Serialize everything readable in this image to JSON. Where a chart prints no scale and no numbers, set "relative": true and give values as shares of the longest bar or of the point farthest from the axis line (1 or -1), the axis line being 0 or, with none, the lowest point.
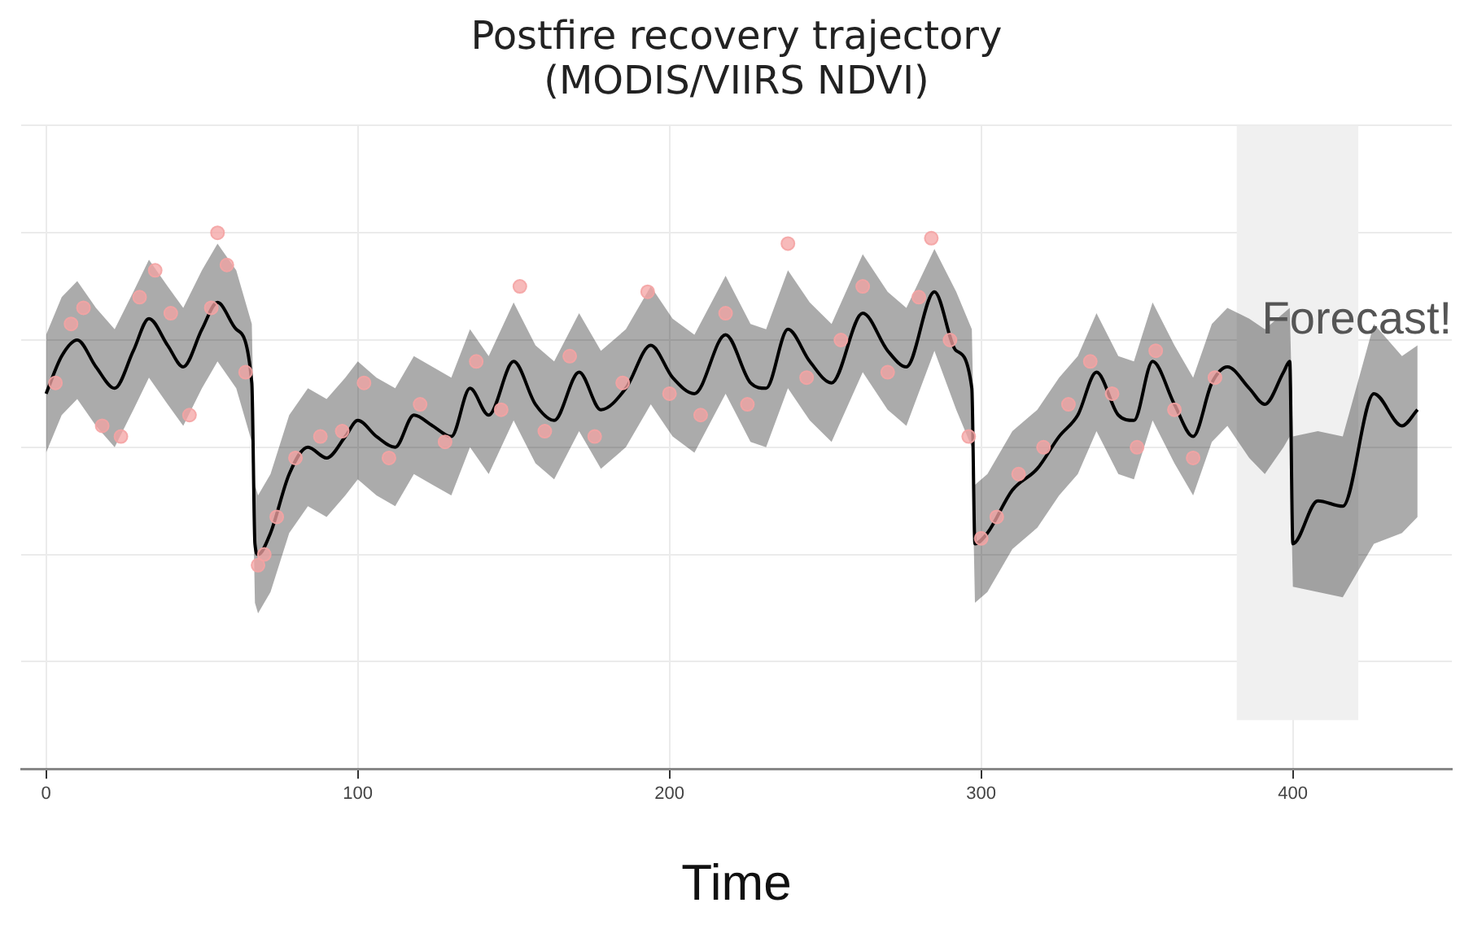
{
  "chart_data": {
    "type": "line",
    "title": "Postfire recovery trajectory\n(MODIS/VIIRS NDVI)",
    "xlabel": "Time",
    "relative": true,
    "grid": true,
    "legend": false,
    "xlim": [
      -8,
      451
    ],
    "xticks": [
      0,
      100,
      200,
      300,
      400
    ],
    "bands": [
      {
        "axis": "x",
        "from": 382,
        "to": 421,
        "color": "#f0f0f0"
      }
    ],
    "annotations": [
      "Forecast!"
    ],
    "series": [
      {
        "type": "line",
        "color": "#000000",
        "marker": "none",
        "line_style": "solid",
        "x": [
          0,
          5,
          10,
          16,
          22,
          28,
          33,
          39,
          44,
          50,
          55,
          61,
          66,
          67,
          68,
          72,
          78,
          84,
          90,
          96,
          100,
          106,
          112,
          118,
          124,
          130,
          136,
          142,
          150,
          157,
          163,
          171,
          178,
          186,
          194,
          201,
          208,
          218,
          226,
          231,
          238,
          245,
          252,
          262,
          270,
          276,
          285,
          292,
          297,
          298,
          302,
          310,
          318,
          325,
          331,
          337,
          344,
          349,
          355,
          362,
          368,
          374,
          379,
          386,
          391,
          397,
          399,
          400,
          408,
          416,
          426,
          435,
          440
        ],
        "values": [
          0.7,
          0.77,
          0.8,
          0.75,
          0.71,
          0.78,
          0.84,
          0.79,
          0.75,
          0.82,
          0.87,
          0.82,
          0.72,
          0.42,
          0.4,
          0.44,
          0.55,
          0.6,
          0.58,
          0.62,
          0.65,
          0.62,
          0.6,
          0.66,
          0.64,
          0.62,
          0.71,
          0.66,
          0.76,
          0.68,
          0.65,
          0.74,
          0.67,
          0.71,
          0.79,
          0.73,
          0.7,
          0.81,
          0.72,
          0.71,
          0.82,
          0.76,
          0.72,
          0.85,
          0.78,
          0.75,
          0.89,
          0.78,
          0.71,
          0.42,
          0.44,
          0.52,
          0.56,
          0.62,
          0.66,
          0.74,
          0.66,
          0.65,
          0.76,
          0.68,
          0.62,
          0.72,
          0.75,
          0.71,
          0.68,
          0.74,
          0.76,
          0.42,
          0.5,
          0.49,
          0.7,
          0.64,
          0.67
        ],
        "lower": [
          0.59,
          0.66,
          0.69,
          0.64,
          0.6,
          0.67,
          0.73,
          0.68,
          0.64,
          0.71,
          0.76,
          0.71,
          0.61,
          0.31,
          0.29,
          0.33,
          0.44,
          0.49,
          0.47,
          0.51,
          0.54,
          0.51,
          0.49,
          0.55,
          0.53,
          0.51,
          0.6,
          0.55,
          0.65,
          0.57,
          0.54,
          0.63,
          0.56,
          0.6,
          0.68,
          0.62,
          0.59,
          0.7,
          0.61,
          0.6,
          0.71,
          0.65,
          0.61,
          0.74,
          0.67,
          0.64,
          0.78,
          0.67,
          0.6,
          0.31,
          0.33,
          0.41,
          0.45,
          0.51,
          0.55,
          0.63,
          0.55,
          0.54,
          0.65,
          0.57,
          0.51,
          0.61,
          0.64,
          0.58,
          0.55,
          0.6,
          0.62,
          0.34,
          0.33,
          0.32,
          0.42,
          0.44,
          0.47
        ],
        "upper": [
          0.81,
          0.88,
          0.91,
          0.86,
          0.82,
          0.89,
          0.95,
          0.9,
          0.86,
          0.93,
          0.98,
          0.93,
          0.83,
          0.53,
          0.51,
          0.55,
          0.66,
          0.71,
          0.69,
          0.73,
          0.76,
          0.73,
          0.71,
          0.77,
          0.75,
          0.73,
          0.82,
          0.77,
          0.87,
          0.79,
          0.76,
          0.85,
          0.78,
          0.82,
          0.9,
          0.84,
          0.81,
          0.92,
          0.83,
          0.82,
          0.93,
          0.87,
          0.83,
          0.96,
          0.89,
          0.86,
          0.97,
          0.89,
          0.82,
          0.53,
          0.55,
          0.63,
          0.67,
          0.73,
          0.77,
          0.85,
          0.77,
          0.76,
          0.87,
          0.79,
          0.73,
          0.83,
          0.86,
          0.84,
          0.82,
          0.85,
          0.86,
          0.62,
          0.63,
          0.62,
          0.83,
          0.77,
          0.79
        ]
      },
      {
        "type": "scatter",
        "color": "#f4a3a3",
        "marker": "circle",
        "x": [
          3,
          8,
          12,
          18,
          24,
          30,
          35,
          40,
          46,
          53,
          55,
          58,
          64,
          68,
          70,
          74,
          80,
          88,
          95,
          102,
          110,
          120,
          128,
          138,
          146,
          152,
          160,
          168,
          176,
          185,
          193,
          200,
          210,
          218,
          225,
          238,
          244,
          255,
          262,
          270,
          280,
          284,
          290,
          296,
          300,
          305,
          312,
          320,
          328,
          335,
          342,
          350,
          356,
          362,
          368,
          375
        ],
        "values": [
          0.72,
          0.83,
          0.86,
          0.64,
          0.62,
          0.88,
          0.93,
          0.85,
          0.66,
          0.86,
          1.0,
          0.94,
          0.74,
          0.38,
          0.4,
          0.47,
          0.58,
          0.62,
          0.63,
          0.72,
          0.58,
          0.68,
          0.61,
          0.76,
          0.67,
          0.9,
          0.63,
          0.77,
          0.62,
          0.72,
          0.89,
          0.7,
          0.66,
          0.85,
          0.68,
          0.98,
          0.73,
          0.8,
          0.9,
          0.74,
          0.88,
          0.99,
          0.8,
          0.62,
          0.43,
          0.47,
          0.55,
          0.6,
          0.68,
          0.76,
          0.7,
          0.6,
          0.78,
          0.67,
          0.58,
          0.73
        ]
      }
    ]
  }
}
